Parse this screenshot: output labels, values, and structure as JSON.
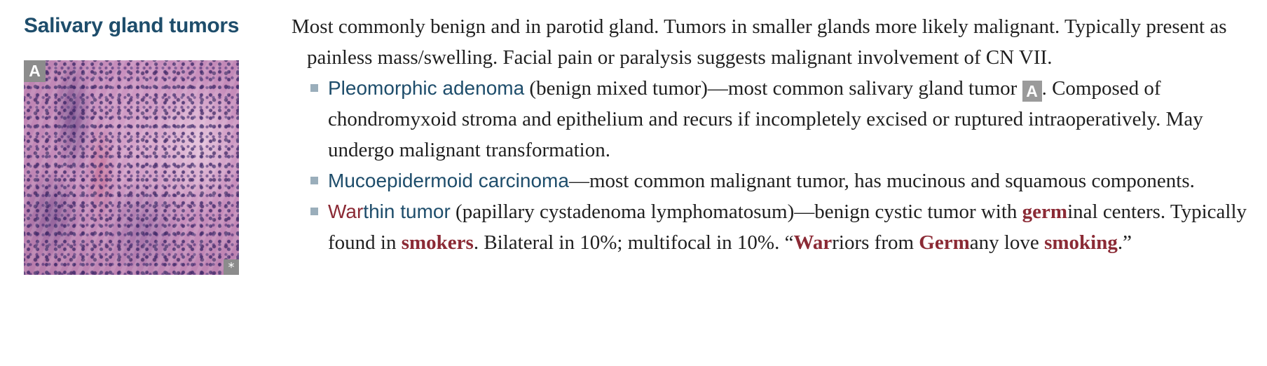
{
  "section_title": "Salivary gland tumors",
  "figure": {
    "label": "A",
    "corner_mark": "*"
  },
  "intro": "Most commonly benign and in parotid gland. Tumors in smaller glands more likely malignant. Typically present as painless mass/swelling. Facial pain or paralysis suggests malignant involvement of CN VII.",
  "pleomorphic": {
    "term": "Pleomorphic adenoma",
    "text1": " (benign mixed tumor)—most common salivary gland tumor ",
    "ref": "A",
    "text2": ". Composed of chondromyxoid stroma and epithelium and recurs if incompletely excised or ruptured intraoperatively. May undergo malignant transformation."
  },
  "mucoepidermoid": {
    "term": "Mucoepidermoid carcinoma",
    "text": "—most common malignant tumor, has mucinous and squamous components."
  },
  "warthin": {
    "term_red": "War",
    "term_rest": "thin tumor",
    "t1": " (papillary cystadenoma lymphomatosum)—benign cystic tumor with ",
    "germ": "germ",
    "t2": "inal centers. Typically found in ",
    "smokers": "smokers",
    "t3": ". Bilateral in 10%; multifocal in 10%. “",
    "war": "War",
    "t4": "riors from ",
    "germ2": "Germ",
    "t5": "any love ",
    "smoking": "smoking",
    "t6": ".”"
  }
}
